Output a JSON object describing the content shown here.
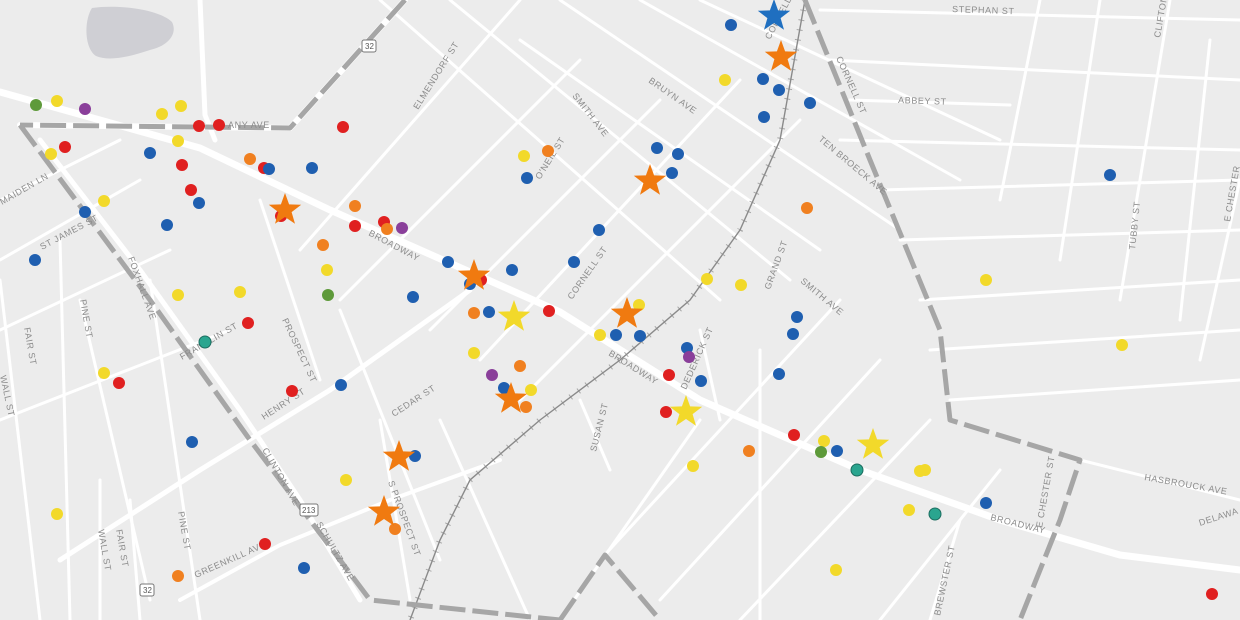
{
  "map": {
    "colors": {
      "background": "#ececec",
      "street": "#ffffff",
      "boundary": "#a6a6a6",
      "railroad": "#8a8a8a",
      "water": "#cfcfd4",
      "red": "#e02020",
      "blue": "#1f5fb0",
      "orange": "#f08020",
      "yellow": "#f2d92a",
      "green": "#5e9a3a",
      "purple": "#8a3f9a",
      "teal": "#2aa58f",
      "star_orange": "#f07a10",
      "star_yellow": "#f2d92a",
      "star_blue": "#1f6fc0"
    },
    "street_labels": [
      {
        "id": "stephan-st",
        "text": "STEPHAN ST"
      },
      {
        "id": "clifton",
        "text": "CLIFTON"
      },
      {
        "id": "elmendorf-st",
        "text": "ELMENDORF ST"
      },
      {
        "id": "bruyn-ave",
        "text": "BRUYN AVE"
      },
      {
        "id": "smith-ave-n",
        "text": "SMITH AVE"
      },
      {
        "id": "oneil-st",
        "text": "O'NEIL ST"
      },
      {
        "id": "cornell-st-n",
        "text": "CORNELL ST"
      },
      {
        "id": "abbey-st",
        "text": "ABBEY ST"
      },
      {
        "id": "ten-broeck-ave",
        "text": "TEN BROECK AVE"
      },
      {
        "id": "albany-ave",
        "text": "ANY AVE"
      },
      {
        "id": "maiden-ln",
        "text": "MAIDEN LN"
      },
      {
        "id": "st-james-st",
        "text": "ST JAMES ST"
      },
      {
        "id": "broadway-w",
        "text": "BROADWAY"
      },
      {
        "id": "cornell-st",
        "text": "CORNELL ST"
      },
      {
        "id": "grand-st",
        "text": "GRAND ST"
      },
      {
        "id": "smith-ave",
        "text": "SMITH AVE"
      },
      {
        "id": "tubby-st",
        "text": "TUBBY ST"
      },
      {
        "id": "e-chester-n",
        "text": "E CHESTER"
      },
      {
        "id": "pine-st",
        "text": "PINE ST"
      },
      {
        "id": "franklin-st",
        "text": "FRANKLIN ST"
      },
      {
        "id": "prospect-st",
        "text": "PROSPECT ST"
      },
      {
        "id": "fair-st",
        "text": "FAIR ST"
      },
      {
        "id": "wall-st",
        "text": "WALL ST"
      },
      {
        "id": "henry-st",
        "text": "HENRY ST"
      },
      {
        "id": "cedar-st",
        "text": "CEDAR ST"
      },
      {
        "id": "broadway-mid",
        "text": "BROADWAY"
      },
      {
        "id": "deerick-st",
        "text": "DEDERICK ST"
      },
      {
        "id": "susan-st",
        "text": "SUSAN ST"
      },
      {
        "id": "hasbrouck-ave",
        "text": "HASBROUCK AVE"
      },
      {
        "id": "broadway-e",
        "text": "BROADWAY"
      },
      {
        "id": "e-chester-st",
        "text": "E CHESTER ST"
      },
      {
        "id": "delaware",
        "text": "DELAWA"
      },
      {
        "id": "brewster-st",
        "text": "BREWSTER ST"
      },
      {
        "id": "s-prospect-st",
        "text": "S PROSPECT ST"
      },
      {
        "id": "greenkill-ave",
        "text": "GREENKILL AVE"
      },
      {
        "id": "clinton-ave",
        "text": "CLINTON AVE"
      },
      {
        "id": "schultz-ave",
        "text": "SCHULTZ AVE"
      },
      {
        "id": "pine-st-s",
        "text": "PINE ST"
      },
      {
        "id": "fair-st-s",
        "text": "FAIR ST"
      },
      {
        "id": "wall-st-s",
        "text": "WALL ST"
      },
      {
        "id": "foxhall-ave",
        "text": "FOXHALL AVE"
      },
      {
        "id": "cornell-st-ne",
        "text": "CORNELL ST"
      }
    ],
    "route_shields": [
      {
        "id": "route-32-north",
        "text": "32"
      },
      {
        "id": "route-32-south",
        "text": "32"
      },
      {
        "id": "route-213",
        "text": "213"
      }
    ]
  }
}
